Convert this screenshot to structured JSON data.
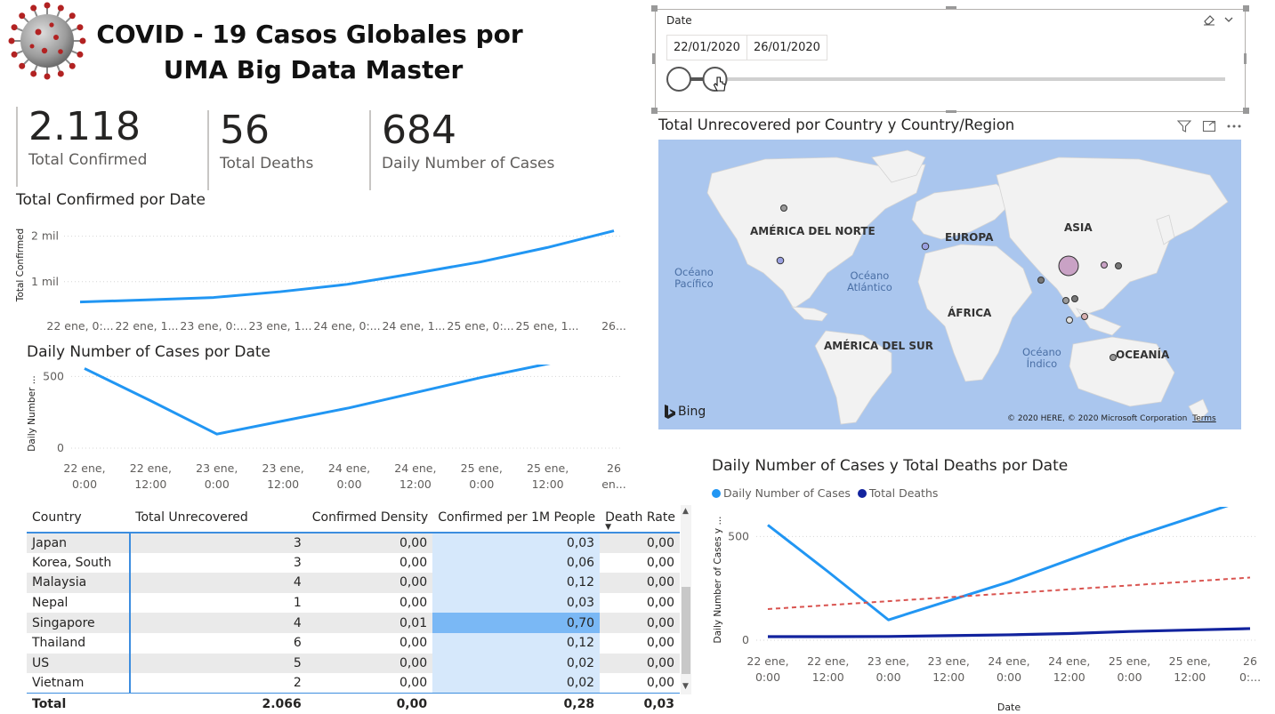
{
  "header": {
    "title_line1": "COVID - 19 Casos Globales por",
    "title_line2": "UMA Big Data Master"
  },
  "kpis": [
    {
      "value": "2.118",
      "label": "Total Confirmed"
    },
    {
      "value": "56",
      "label": "Total Deaths"
    },
    {
      "value": "684",
      "label": "Daily Number of Cases"
    }
  ],
  "slicer": {
    "title": "Date",
    "start_date": "22/01/2020",
    "end_date": "26/01/2020",
    "range_fraction": [
      0,
      0.066
    ]
  },
  "map_visual": {
    "title": "Total Unrecovered por Country y Country/Region",
    "continents": [
      "AMÉRICA DEL NORTE",
      "EUROPA",
      "ASIA",
      "ÁFRICA",
      "AMÉRICA DEL SUR",
      "OCEANÍA"
    ],
    "oceans": [
      {
        "line1": "Océano",
        "line2": "Pacífico"
      },
      {
        "line1": "Océano",
        "line2": "Atlántico"
      },
      {
        "line1": "Océano",
        "line2": "Índico"
      }
    ],
    "bing_label": "Bing",
    "attribution": "© 2020 HERE, © 2020 Microsoft Corporation",
    "terms": "Terms",
    "colors": {
      "water": "#aac6ee",
      "land": "#f2f2f2",
      "bubble": "#c9a2c5"
    }
  },
  "chart_data": [
    {
      "type": "line",
      "title": "Total Confirmed por Date",
      "ylabel": "Total Confirmed",
      "categories": [
        "22 ene, 0:...",
        "22 ene, 1...",
        "23 ene, 0:...",
        "23 ene, 1...",
        "24 ene, 0:...",
        "24 ene, 1...",
        "25 ene, 0:...",
        "25 ene, 1...",
        "26..."
      ],
      "y_ticks": [
        "1 mil",
        "2 mil"
      ],
      "ylim": [
        0,
        2500
      ],
      "series": [
        {
          "values": [
            555,
            600,
            653,
            780,
            941,
            1180,
            1434,
            1750,
            2118
          ],
          "color": "#2196f3"
        }
      ]
    },
    {
      "type": "line",
      "title": "Daily Number of Cases por Date",
      "ylabel": "Daily Number ...",
      "categories": [
        "22 ene, 0:00",
        "22 ene, 12:00",
        "23 ene, 0:00",
        "23 ene, 12:00",
        "24 ene, 0:00",
        "24 ene, 12:00",
        "25 ene, 0:00",
        "25 ene, 12:00",
        "26 en..."
      ],
      "y_ticks": [
        "0",
        "500"
      ],
      "ylim": [
        0,
        750
      ],
      "series": [
        {
          "values": [
            555,
            330,
            98,
            190,
            281,
            387,
            493,
            588,
            684
          ],
          "color": "#2196f3"
        }
      ]
    },
    {
      "type": "line",
      "title": "Daily Number of Cases y Total Deaths por Date",
      "xlabel": "Date",
      "ylabel": "Daily Number of Cases y ...",
      "categories": [
        "22 ene, 0:00",
        "22 ene, 12:00",
        "23 ene, 0:00",
        "23 ene, 12:00",
        "24 ene, 0:00",
        "24 ene, 12:00",
        "25 ene, 0:00",
        "25 ene, 12:00",
        "26 0:..."
      ],
      "y_ticks": [
        "0",
        "500"
      ],
      "ylim": [
        0,
        750
      ],
      "series": [
        {
          "name": "Daily Number of Cases",
          "values": [
            555,
            330,
            98,
            190,
            281,
            387,
            493,
            588,
            684
          ],
          "color": "#2196f3"
        },
        {
          "name": "Total Deaths",
          "values": [
            17,
            17,
            18,
            22,
            26,
            32,
            42,
            49,
            56
          ],
          "color": "#12239e"
        },
        {
          "values": [
            150,
            169,
            188,
            207,
            226,
            245,
            264,
            283,
            302
          ],
          "color": "#d9534f"
        }
      ]
    }
  ],
  "table": {
    "columns": [
      "Country",
      "Total Unrecovered",
      "Confirmed Density",
      "Confirmed per 1M People",
      "Death Rate"
    ],
    "rows": [
      {
        "country": "Japan",
        "unrecovered": "3",
        "density": "0,00",
        "per1m": "0,03",
        "death_rate": "0,00",
        "per1m_value": 0.03
      },
      {
        "country": "Korea, South",
        "unrecovered": "3",
        "density": "0,00",
        "per1m": "0,06",
        "death_rate": "0,00",
        "per1m_value": 0.06
      },
      {
        "country": "Malaysia",
        "unrecovered": "4",
        "density": "0,00",
        "per1m": "0,12",
        "death_rate": "0,00",
        "per1m_value": 0.12
      },
      {
        "country": "Nepal",
        "unrecovered": "1",
        "density": "0,00",
        "per1m": "0,03",
        "death_rate": "0,00",
        "per1m_value": 0.03
      },
      {
        "country": "Singapore",
        "unrecovered": "4",
        "density": "0,01",
        "per1m": "0,70",
        "death_rate": "0,00",
        "per1m_value": 0.7
      },
      {
        "country": "Thailand",
        "unrecovered": "6",
        "density": "0,00",
        "per1m": "0,12",
        "death_rate": "0,00",
        "per1m_value": 0.12
      },
      {
        "country": "US",
        "unrecovered": "5",
        "density": "0,00",
        "per1m": "0,02",
        "death_rate": "0,00",
        "per1m_value": 0.02
      },
      {
        "country": "Vietnam",
        "unrecovered": "2",
        "density": "0,00",
        "per1m": "0,02",
        "death_rate": "0,00",
        "per1m_value": 0.02
      }
    ],
    "total": {
      "label": "Total",
      "unrecovered": "2.066",
      "density": "0,00",
      "per1m": "0,28",
      "death_rate": "0,03"
    }
  }
}
